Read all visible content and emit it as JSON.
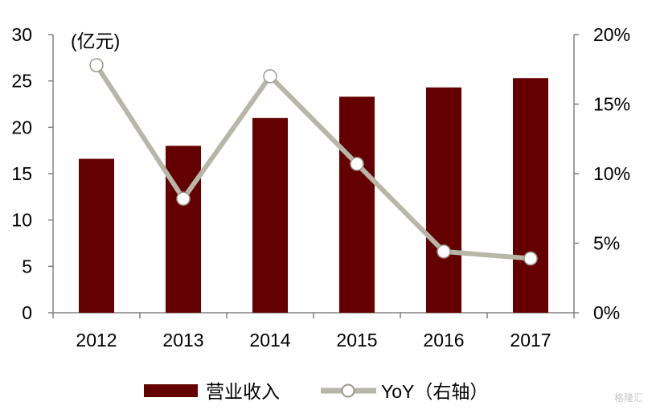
{
  "chart_data": {
    "type": "bar",
    "categories": [
      "2012",
      "2013",
      "2014",
      "2015",
      "2016",
      "2017"
    ],
    "series": [
      {
        "name": "营业收入",
        "type": "bar",
        "axis": "left",
        "color": "#650000",
        "values": [
          16.6,
          18.0,
          21.0,
          23.3,
          24.3,
          25.3
        ]
      },
      {
        "name": "YoY（右轴）",
        "type": "line",
        "axis": "right",
        "color": "#b7b6a7",
        "values": [
          17.8,
          8.2,
          17.0,
          10.7,
          4.4,
          3.9
        ]
      }
    ],
    "unit_label": "(亿元)",
    "y_left": {
      "min": 0,
      "max": 30,
      "ticks": [
        "0",
        "5",
        "10",
        "15",
        "20",
        "25",
        "30"
      ]
    },
    "y_right": {
      "min": 0,
      "max": 20,
      "ticks": [
        "0%",
        "5%",
        "10%",
        "15%",
        "20%"
      ]
    },
    "grid": false,
    "legend_position": "bottom"
  },
  "watermark": "格隆汇"
}
